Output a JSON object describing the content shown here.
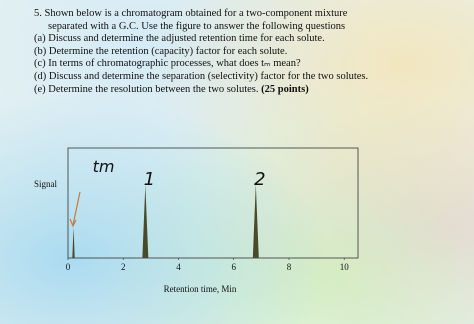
{
  "question": {
    "lines": [
      "5. Shown below is a chromatogram obtained for a two-component mixture",
      "separated with a G.C. Use the figure to answer the following questions"
    ],
    "parts": [
      "(a) Discuss and determine the adjusted retention time for each solute.",
      "(b) Determine the retention (capacity) factor for each solute.",
      "(c) In terms of chromatographic processes, what does tₘ mean?",
      "(d) Discuss and determine the separation (selectivity) factor for the two solutes.",
      "(e) Determine the resolution between the two solutes."
    ],
    "points": "(25 points)"
  },
  "figure": {
    "chart_data": {
      "type": "peaks",
      "x_label": "Retention time, Min",
      "y_label": "Signal",
      "xlim": [
        0,
        10.5
      ],
      "xticks": [
        0,
        2,
        4,
        6,
        8,
        10
      ],
      "ylim": [
        0,
        100
      ],
      "peaks": [
        {
          "name": "tm",
          "x": 0.2,
          "height": 28
        },
        {
          "name": "1",
          "x": 2.8,
          "height": 66
        },
        {
          "name": "2",
          "x": 6.8,
          "height": 67
        }
      ],
      "color": "#4a4a2a",
      "annotation_color": "#d98a2a"
    }
  }
}
